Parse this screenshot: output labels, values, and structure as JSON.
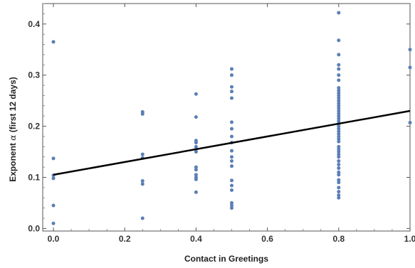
{
  "chart_data": {
    "type": "scatter",
    "title": "",
    "xlabel": "Contact in Greetings",
    "ylabel_prefix": "Exponent ",
    "ylabel_symbol": "α",
    "ylabel_suffix": " (first 12 days)",
    "xlim": [
      -0.03,
      1.0
    ],
    "ylim": [
      -0.005,
      0.44
    ],
    "x_ticks": [
      {
        "value": 0.0,
        "label": "0.0"
      },
      {
        "value": 0.2,
        "label": "0.2"
      },
      {
        "value": 0.4,
        "label": "0.4"
      },
      {
        "value": 0.6,
        "label": "0.6"
      },
      {
        "value": 0.8,
        "label": "0.8"
      },
      {
        "value": 1.0,
        "label": "1.0"
      }
    ],
    "y_ticks": [
      {
        "value": 0.0,
        "label": "0.0"
      },
      {
        "value": 0.1,
        "label": "0.1"
      },
      {
        "value": 0.2,
        "label": "0.2"
      },
      {
        "value": 0.3,
        "label": "0.3"
      },
      {
        "value": 0.4,
        "label": "0.4"
      }
    ],
    "grid": false,
    "colors": {
      "points": "#5b7fb5",
      "fit_line": "#000000"
    },
    "fit_line": {
      "x": [
        0.0,
        1.0
      ],
      "y": [
        0.105,
        0.23
      ]
    },
    "points": [
      [
        0.0,
        0.365
      ],
      [
        0.0,
        0.137
      ],
      [
        0.0,
        0.104
      ],
      [
        0.0,
        0.098
      ],
      [
        0.0,
        0.045
      ],
      [
        0.0,
        0.01
      ],
      [
        0.25,
        0.228
      ],
      [
        0.25,
        0.224
      ],
      [
        0.25,
        0.145
      ],
      [
        0.25,
        0.138
      ],
      [
        0.25,
        0.093
      ],
      [
        0.25,
        0.087
      ],
      [
        0.25,
        0.02
      ],
      [
        0.4,
        0.263
      ],
      [
        0.4,
        0.218
      ],
      [
        0.4,
        0.172
      ],
      [
        0.4,
        0.168
      ],
      [
        0.4,
        0.16
      ],
      [
        0.4,
        0.155
      ],
      [
        0.4,
        0.15
      ],
      [
        0.4,
        0.12
      ],
      [
        0.4,
        0.115
      ],
      [
        0.4,
        0.105
      ],
      [
        0.4,
        0.1
      ],
      [
        0.4,
        0.096
      ],
      [
        0.4,
        0.071
      ],
      [
        0.5,
        0.312
      ],
      [
        0.5,
        0.3
      ],
      [
        0.5,
        0.277
      ],
      [
        0.5,
        0.268
      ],
      [
        0.5,
        0.255
      ],
      [
        0.5,
        0.208
      ],
      [
        0.5,
        0.195
      ],
      [
        0.5,
        0.18
      ],
      [
        0.5,
        0.168
      ],
      [
        0.5,
        0.152
      ],
      [
        0.5,
        0.14
      ],
      [
        0.5,
        0.132
      ],
      [
        0.5,
        0.122
      ],
      [
        0.5,
        0.094
      ],
      [
        0.5,
        0.084
      ],
      [
        0.5,
        0.075
      ],
      [
        0.5,
        0.05
      ],
      [
        0.5,
        0.045
      ],
      [
        0.5,
        0.04
      ],
      [
        0.8,
        0.422
      ],
      [
        0.8,
        0.368
      ],
      [
        0.8,
        0.34
      ],
      [
        0.8,
        0.32
      ],
      [
        0.8,
        0.312
      ],
      [
        0.8,
        0.3
      ],
      [
        0.8,
        0.29
      ],
      [
        0.8,
        0.275
      ],
      [
        0.8,
        0.27
      ],
      [
        0.8,
        0.265
      ],
      [
        0.8,
        0.26
      ],
      [
        0.8,
        0.255
      ],
      [
        0.8,
        0.25
      ],
      [
        0.8,
        0.245
      ],
      [
        0.8,
        0.24
      ],
      [
        0.8,
        0.235
      ],
      [
        0.8,
        0.23
      ],
      [
        0.8,
        0.225
      ],
      [
        0.8,
        0.22
      ],
      [
        0.8,
        0.215
      ],
      [
        0.8,
        0.21
      ],
      [
        0.8,
        0.205
      ],
      [
        0.8,
        0.2
      ],
      [
        0.8,
        0.195
      ],
      [
        0.8,
        0.19
      ],
      [
        0.8,
        0.185
      ],
      [
        0.8,
        0.18
      ],
      [
        0.8,
        0.175
      ],
      [
        0.8,
        0.17
      ],
      [
        0.8,
        0.16
      ],
      [
        0.8,
        0.155
      ],
      [
        0.8,
        0.15
      ],
      [
        0.8,
        0.145
      ],
      [
        0.8,
        0.14
      ],
      [
        0.8,
        0.132
      ],
      [
        0.8,
        0.125
      ],
      [
        0.8,
        0.118
      ],
      [
        0.8,
        0.11
      ],
      [
        0.8,
        0.105
      ],
      [
        0.8,
        0.095
      ],
      [
        0.8,
        0.09
      ],
      [
        0.8,
        0.08
      ],
      [
        0.8,
        0.072
      ],
      [
        0.8,
        0.065
      ],
      [
        0.8,
        0.06
      ],
      [
        1.0,
        0.35
      ],
      [
        1.0,
        0.315
      ],
      [
        1.0,
        0.207
      ]
    ]
  }
}
